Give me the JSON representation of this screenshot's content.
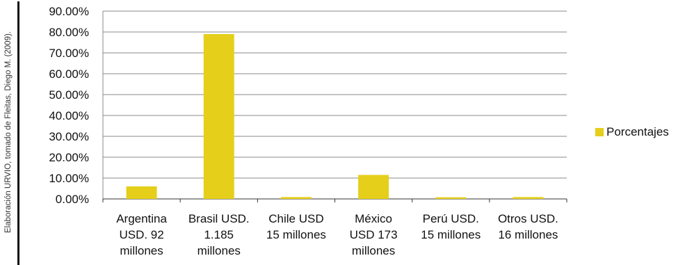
{
  "source_note": "Elaboración URVIO, tomado de Fleitas, Diego M. (2009).",
  "chart_data": {
    "type": "bar",
    "categories": [
      [
        "Argentina",
        "USD. 92",
        "millones"
      ],
      [
        "Brasil USD.",
        "1.185",
        "millones"
      ],
      [
        "Chile USD",
        "15 millones"
      ],
      [
        "México",
        "USD 173",
        "millones"
      ],
      [
        "Perú USD.",
        "15 millones"
      ],
      [
        "Otros USD.",
        "16 millones"
      ]
    ],
    "series": [
      {
        "name": "Porcentajes",
        "values": [
          0.06,
          0.79,
          0.009,
          0.115,
          0.008,
          0.009
        ],
        "color": "#e5cf1a"
      }
    ],
    "yticks": [
      "0.00%",
      "10.00%",
      "20.00%",
      "30.00%",
      "40.00%",
      "50.00%",
      "60.00%",
      "70.00%",
      "80.00%",
      "90.00%"
    ],
    "ylim": [
      0,
      0.9
    ],
    "grid": true,
    "legend_position": "right"
  }
}
